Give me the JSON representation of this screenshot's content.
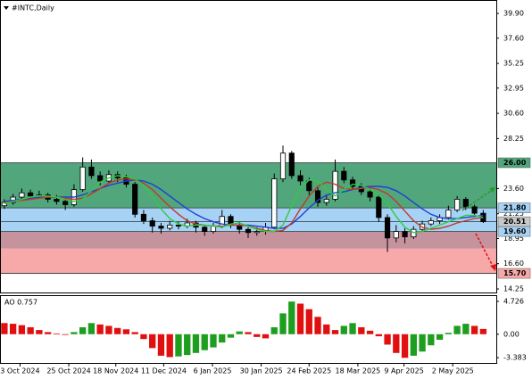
{
  "chart_data": [
    {
      "type": "candlestick",
      "title": "#INTC,Daily",
      "xlim": [
        0,
        57
      ],
      "xticks": [
        {
          "value": 2.3,
          "label": "3 Oct 2024"
        },
        {
          "value": 7.9,
          "label": "25 Oct 2024"
        },
        {
          "value": 13.3,
          "label": "18 Nov 2024"
        },
        {
          "value": 18.8,
          "label": "11 Dec 2024"
        },
        {
          "value": 24.4,
          "label": "6 Jan 2025"
        },
        {
          "value": 30.0,
          "label": "30 Jan 2025"
        },
        {
          "value": 35.5,
          "label": "24 Feb 2025"
        },
        {
          "value": 41.1,
          "label": "18 Mar 2025"
        },
        {
          "value": 46.4,
          "label": "9 Apr 2025"
        },
        {
          "value": 52.0,
          "label": "2 May 2025"
        }
      ],
      "ylim": [
        13.92,
        41.07
      ],
      "yticks": [
        {
          "value": 39.9,
          "label": "39.90"
        },
        {
          "value": 37.6,
          "label": "37.60"
        },
        35.25,
        32.95,
        {
          "value": 30.6,
          "label": "30.60"
        },
        28.25,
        {
          "value": 23.6,
          "label": "23.60"
        },
        21.25,
        18.95,
        {
          "value": 16.6,
          "label": "16.60"
        },
        14.25
      ],
      "up_color": "#ffffff",
      "down_color": "#000000",
      "open": [
        22.0,
        22.3,
        22.8,
        23.2,
        22.9,
        23.0,
        22.6,
        22.4,
        22.1,
        23.5,
        25.6,
        24.8,
        24.3,
        24.9,
        24.6,
        24.0,
        21.2,
        20.6,
        20.1,
        19.9,
        20.2,
        20.1,
        20.4,
        20.0,
        19.6,
        20.1,
        21.0,
        20.2,
        19.8,
        19.5,
        19.6,
        20.0,
        24.5,
        26.9,
        24.8,
        24.3,
        23.4,
        22.3,
        22.6,
        25.2,
        24.4,
        23.8,
        23.3,
        22.8,
        20.9,
        19.0,
        19.6,
        19.1,
        19.8,
        20.3,
        20.6,
        20.9,
        21.6,
        22.6,
        21.9,
        21.3
      ],
      "high": [
        22.6,
        23.1,
        23.6,
        23.5,
        23.4,
        23.2,
        23.0,
        22.7,
        24.0,
        26.5,
        26.3,
        25.2,
        25.3,
        25.2,
        24.9,
        24.2,
        21.6,
        20.9,
        20.4,
        20.6,
        20.5,
        20.8,
        20.6,
        20.2,
        20.4,
        21.6,
        21.2,
        20.5,
        20.0,
        20.0,
        20.4,
        25.0,
        27.6,
        27.1,
        25.3,
        24.6,
        23.7,
        23.0,
        26.3,
        25.6,
        24.7,
        24.1,
        23.6,
        23.0,
        21.2,
        20.2,
        19.9,
        20.1,
        20.6,
        20.9,
        21.2,
        22.0,
        22.9,
        22.8,
        22.1,
        21.6
      ],
      "low": [
        21.7,
        22.1,
        22.6,
        22.6,
        22.7,
        22.3,
        22.1,
        21.6,
        21.9,
        23.3,
        24.5,
        23.9,
        24.1,
        24.2,
        23.7,
        20.9,
        20.3,
        19.5,
        19.4,
        19.7,
        19.8,
        19.9,
        19.5,
        19.2,
        19.4,
        19.9,
        19.9,
        19.4,
        19.0,
        19.2,
        19.3,
        19.8,
        24.2,
        24.5,
        23.9,
        23.0,
        21.9,
        22.0,
        22.4,
        24.1,
        23.5,
        23.0,
        22.4,
        20.5,
        17.7,
        18.6,
        18.5,
        18.9,
        19.6,
        20.1,
        20.3,
        20.7,
        21.4,
        21.6,
        21.0,
        20.4
      ],
      "close": [
        22.3,
        22.8,
        23.2,
        22.9,
        23.0,
        22.6,
        22.4,
        22.1,
        23.5,
        25.6,
        24.8,
        24.3,
        24.9,
        24.6,
        24.0,
        21.2,
        20.6,
        20.1,
        19.9,
        20.2,
        20.1,
        20.4,
        20.0,
        19.6,
        20.1,
        21.0,
        20.2,
        19.8,
        19.5,
        19.6,
        20.0,
        24.5,
        26.9,
        24.8,
        24.3,
        23.4,
        22.3,
        22.6,
        25.2,
        24.4,
        23.8,
        23.3,
        22.8,
        20.9,
        19.0,
        19.6,
        19.1,
        19.8,
        20.3,
        20.6,
        20.9,
        21.6,
        22.6,
        21.9,
        21.3,
        20.51
      ],
      "lines": [
        {
          "color": "#1f3fd6",
          "values": [
            22.4,
            22.5,
            22.6,
            22.7,
            22.8,
            22.8,
            22.8,
            22.8,
            22.8,
            23.0,
            23.3,
            23.6,
            23.9,
            24.1,
            24.3,
            24.4,
            24.3,
            24.0,
            23.5,
            22.9,
            22.3,
            21.7,
            21.2,
            20.8,
            20.5,
            20.3,
            20.2,
            20.2,
            20.2,
            20.1,
            20.0,
            19.9,
            19.9,
            20.3,
            21.0,
            21.8,
            22.5,
            23.0,
            23.2,
            23.3,
            23.5,
            23.7,
            23.8,
            23.8,
            23.7,
            23.4,
            22.9,
            22.3,
            21.7,
            21.2,
            20.9,
            20.8,
            20.8,
            20.9,
            21.0,
            21.1
          ]
        },
        {
          "color": "#c0392b",
          "values": [
            22.3,
            22.4,
            22.5,
            22.6,
            22.7,
            22.8,
            22.8,
            22.7,
            22.6,
            22.7,
            23.1,
            23.6,
            24.1,
            24.4,
            24.5,
            24.4,
            24.1,
            23.5,
            22.7,
            21.9,
            21.2,
            20.6,
            20.3,
            20.2,
            20.1,
            20.1,
            20.2,
            20.2,
            20.1,
            19.9,
            19.7,
            19.6,
            19.7,
            20.4,
            21.7,
            22.9,
            23.8,
            24.2,
            24.0,
            23.6,
            23.5,
            23.6,
            23.7,
            23.5,
            23.1,
            22.4,
            21.5,
            20.6,
            20.0,
            19.8,
            19.9,
            20.1,
            20.4,
            20.6,
            20.8,
            20.9
          ]
        },
        {
          "color": "#2ecc40",
          "values": [
            22.2,
            22.4,
            22.6,
            22.8,
            22.9,
            22.9,
            22.8,
            22.6,
            22.4,
            22.6,
            23.4,
            24.2,
            24.6,
            24.8,
            24.7,
            24.5,
            23.9,
            22.9,
            21.7,
            20.8,
            20.3,
            20.1,
            20.2,
            20.2,
            20.1,
            20.0,
            20.3,
            20.4,
            20.1,
            19.8,
            19.6,
            19.6,
            20.2,
            22.0,
            23.6,
            24.4,
            24.3,
            23.5,
            22.9,
            23.5,
            24.0,
            23.9,
            23.5,
            23.0,
            22.2,
            21.0,
            20.0,
            19.5,
            19.6,
            19.9,
            20.2,
            20.5,
            20.8,
            21.1,
            21.1,
            20.9
          ]
        }
      ],
      "zones": [
        {
          "from": 26.0,
          "to": 21.8,
          "color": "#52a67c"
        },
        {
          "from": 21.8,
          "to": 19.6,
          "color": "#a6d3f5"
        },
        {
          "from": 19.6,
          "to": 18.0,
          "color": "#c4939e"
        },
        {
          "from": 18.0,
          "to": 15.7,
          "color": "#f7a9a9"
        }
      ],
      "levels": [
        {
          "value": 26.0,
          "label": "26.00",
          "color": "#52a67c"
        },
        {
          "value": 21.8,
          "label": "21.80",
          "color": "#a6d3f5"
        },
        {
          "value": 20.51,
          "label": "20.51",
          "color": "#c8c8c8"
        },
        {
          "value": 19.6,
          "label": "19.60",
          "color": "#a6d3f5"
        },
        {
          "value": 15.7,
          "label": "15.70",
          "color": "#f7a9a9"
        }
      ]
    },
    {
      "type": "histogram_ao",
      "title": "AO 0.757",
      "ylim": [
        -4.14,
        5.49
      ],
      "yticks": [
        4.726,
        {
          "value": 0,
          "label": "0.00"
        },
        -3.383
      ],
      "up_color": "#1e9e1e",
      "down_color": "#e01010",
      "values": [
        1.6,
        1.5,
        1.3,
        1.0,
        0.6,
        0.3,
        0.1,
        -0.1,
        0.3,
        1.0,
        1.6,
        1.4,
        1.2,
        0.9,
        0.7,
        0.3,
        -0.7,
        -2.0,
        -3.1,
        -3.3,
        -3.2,
        -3.0,
        -2.7,
        -2.3,
        -1.9,
        -1.2,
        -0.5,
        0.4,
        0.3,
        -0.4,
        -0.6,
        1.0,
        3.0,
        4.7,
        4.4,
        3.6,
        2.5,
        1.4,
        0.6,
        1.2,
        1.6,
        1.0,
        0.5,
        -0.3,
        -1.5,
        -2.7,
        -3.4,
        -3.1,
        -2.5,
        -1.6,
        -0.8,
        0.2,
        1.2,
        1.5,
        1.2,
        0.757
      ]
    }
  ]
}
